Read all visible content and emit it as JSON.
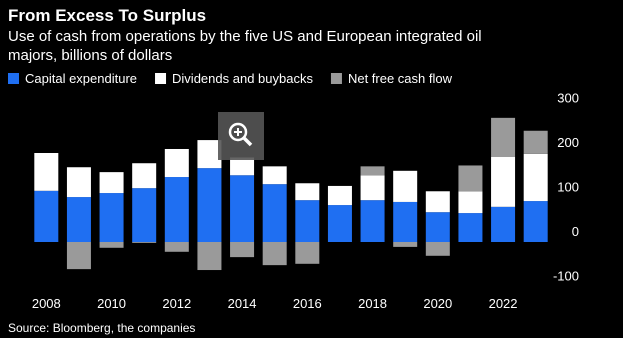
{
  "chart_data": {
    "type": "bar",
    "stacked": true,
    "title": "From Excess To Surplus",
    "subtitle": "Use of cash from operations by the five US and European integrated oil majors, billions of dollars",
    "source": "Source: Bloomberg, the companies",
    "categories": [
      "2008",
      null,
      "2010",
      null,
      "2012",
      null,
      "2014",
      null,
      "2016",
      null,
      "2018",
      null,
      "2020",
      null,
      "2022",
      null
    ],
    "series": [
      {
        "name": "Capital expenditure",
        "color": "#1f6ff2",
        "values": [
          115,
          101,
          110,
          121,
          146,
          166,
          150,
          130,
          94,
          83,
          94,
          90,
          67,
          65,
          79,
          92
        ]
      },
      {
        "name": "Dividends and buybacks",
        "color": "#ffffff",
        "values": [
          85,
          67,
          47,
          56,
          63,
          63,
          40,
          40,
          38,
          43,
          56,
          70,
          47,
          49,
          112,
          106
        ]
      },
      {
        "name": "Net free cash flow",
        "color": "#9a9a9a",
        "values": [
          0,
          -61,
          -13,
          -2,
          -22,
          -63,
          -34,
          -52,
          -49,
          0,
          20,
          -11,
          -31,
          58,
          88,
          52
        ]
      }
    ],
    "ylim": [
      -100,
      300
    ],
    "yticks": [
      -100,
      0,
      100,
      200,
      300
    ],
    "grid": false
  }
}
